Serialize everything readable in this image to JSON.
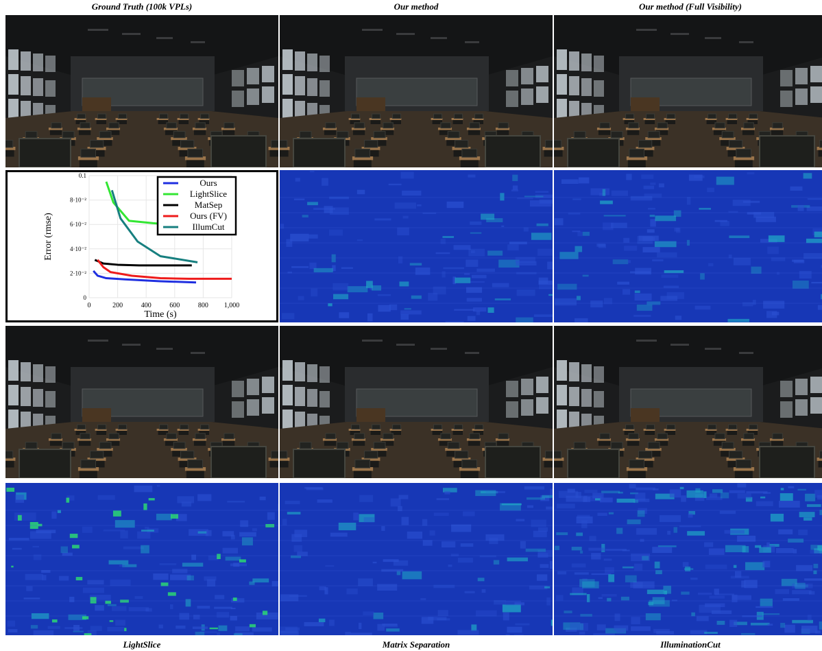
{
  "captions": {
    "top": [
      "Ground Truth (100k VPLs)",
      "Our method",
      "Our method (Full Visibility)"
    ],
    "bottom": [
      "LightSlice",
      "Matrix Separation",
      "IlluminationCut"
    ]
  },
  "colors": {
    "render_dark": "#1b1c1d",
    "desk_wood": "#a57c4f",
    "window_light": "#c9d2d8",
    "error_base": "#1737b6",
    "error_cyan": "#1fa7c6",
    "error_green": "#2de070"
  },
  "panels": {
    "row1": [
      {
        "kind": "render",
        "content": "classroom-ground-truth"
      },
      {
        "kind": "render",
        "content": "classroom-our-method"
      },
      {
        "kind": "render",
        "content": "classroom-our-method-full-visibility"
      }
    ],
    "row2": [
      {
        "kind": "chart"
      },
      {
        "kind": "error-map",
        "content": "our-method-error"
      },
      {
        "kind": "error-map",
        "content": "full-visibility-error"
      }
    ],
    "row3": [
      {
        "kind": "render",
        "content": "classroom-lightslice"
      },
      {
        "kind": "render",
        "content": "classroom-matrix-separation"
      },
      {
        "kind": "render",
        "content": "classroom-illuminationcut"
      }
    ],
    "row4": [
      {
        "kind": "error-map",
        "content": "lightslice-error"
      },
      {
        "kind": "error-map",
        "content": "matrix-separation-error"
      },
      {
        "kind": "error-map",
        "content": "illuminationcut-error"
      }
    ]
  },
  "chart_data": {
    "type": "line",
    "xlabel": "Time (s)",
    "ylabel": "Error (rmse)",
    "xlim": [
      0,
      1000
    ],
    "ylim": [
      0,
      0.1
    ],
    "xticks": [
      "0",
      "200",
      "400",
      "600",
      "800",
      "1,000"
    ],
    "yticks": [
      "0",
      "2·10⁻²",
      "4·10⁻²",
      "6·10⁻²",
      "8·10⁻²",
      "0.1"
    ],
    "legend_position": "top-right",
    "grid": true,
    "series": [
      {
        "name": "Ours",
        "color": "#1f2fe0",
        "x": [
          30,
          60,
          120,
          250,
          500,
          750
        ],
        "y": [
          0.022,
          0.018,
          0.016,
          0.015,
          0.0135,
          0.0125
        ]
      },
      {
        "name": "LightSlice",
        "color": "#33e633",
        "x": [
          120,
          170,
          280,
          450,
          700,
          1000
        ],
        "y": [
          0.095,
          0.078,
          0.063,
          0.061,
          0.059,
          0.057
        ]
      },
      {
        "name": "MatSep",
        "color": "#000000",
        "x": [
          40,
          100,
          200,
          350,
          500,
          720
        ],
        "y": [
          0.031,
          0.028,
          0.027,
          0.0265,
          0.0265,
          0.0265
        ]
      },
      {
        "name": "Ours (FV)",
        "color": "#ee1b1b",
        "x": [
          60,
          100,
          150,
          300,
          500,
          700,
          1000
        ],
        "y": [
          0.031,
          0.025,
          0.021,
          0.018,
          0.016,
          0.0155,
          0.0155
        ]
      },
      {
        "name": "IllumCut",
        "color": "#177f7f",
        "x": [
          160,
          220,
          340,
          500,
          760
        ],
        "y": [
          0.088,
          0.065,
          0.046,
          0.034,
          0.029
        ]
      }
    ]
  }
}
